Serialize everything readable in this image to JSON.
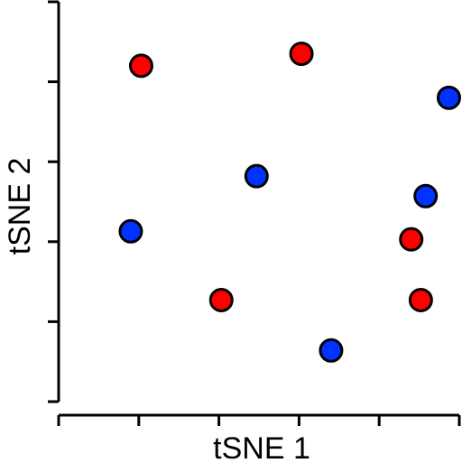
{
  "chart_data": {
    "type": "scatter",
    "title": "",
    "xlabel": "tSNE 1",
    "ylabel": "tSNE 2",
    "xlim": [
      0,
      5
    ],
    "ylim": [
      0,
      5
    ],
    "x_ticks": [
      0,
      1,
      2,
      3,
      4,
      5
    ],
    "y_ticks": [
      0,
      1,
      2,
      3,
      4,
      5
    ],
    "grid": false,
    "legend": "none",
    "series": [
      {
        "color": "#ff0000",
        "points": [
          {
            "x": 1.03,
            "y": 4.2
          },
          {
            "x": 3.03,
            "y": 4.35
          },
          {
            "x": 2.03,
            "y": 1.27
          },
          {
            "x": 4.4,
            "y": 2.03
          },
          {
            "x": 4.52,
            "y": 1.27
          }
        ]
      },
      {
        "color": "#0033ff",
        "points": [
          {
            "x": 0.9,
            "y": 2.13
          },
          {
            "x": 2.47,
            "y": 2.82
          },
          {
            "x": 3.4,
            "y": 0.64
          },
          {
            "x": 4.58,
            "y": 2.57
          },
          {
            "x": 4.87,
            "y": 3.8
          }
        ]
      }
    ]
  }
}
